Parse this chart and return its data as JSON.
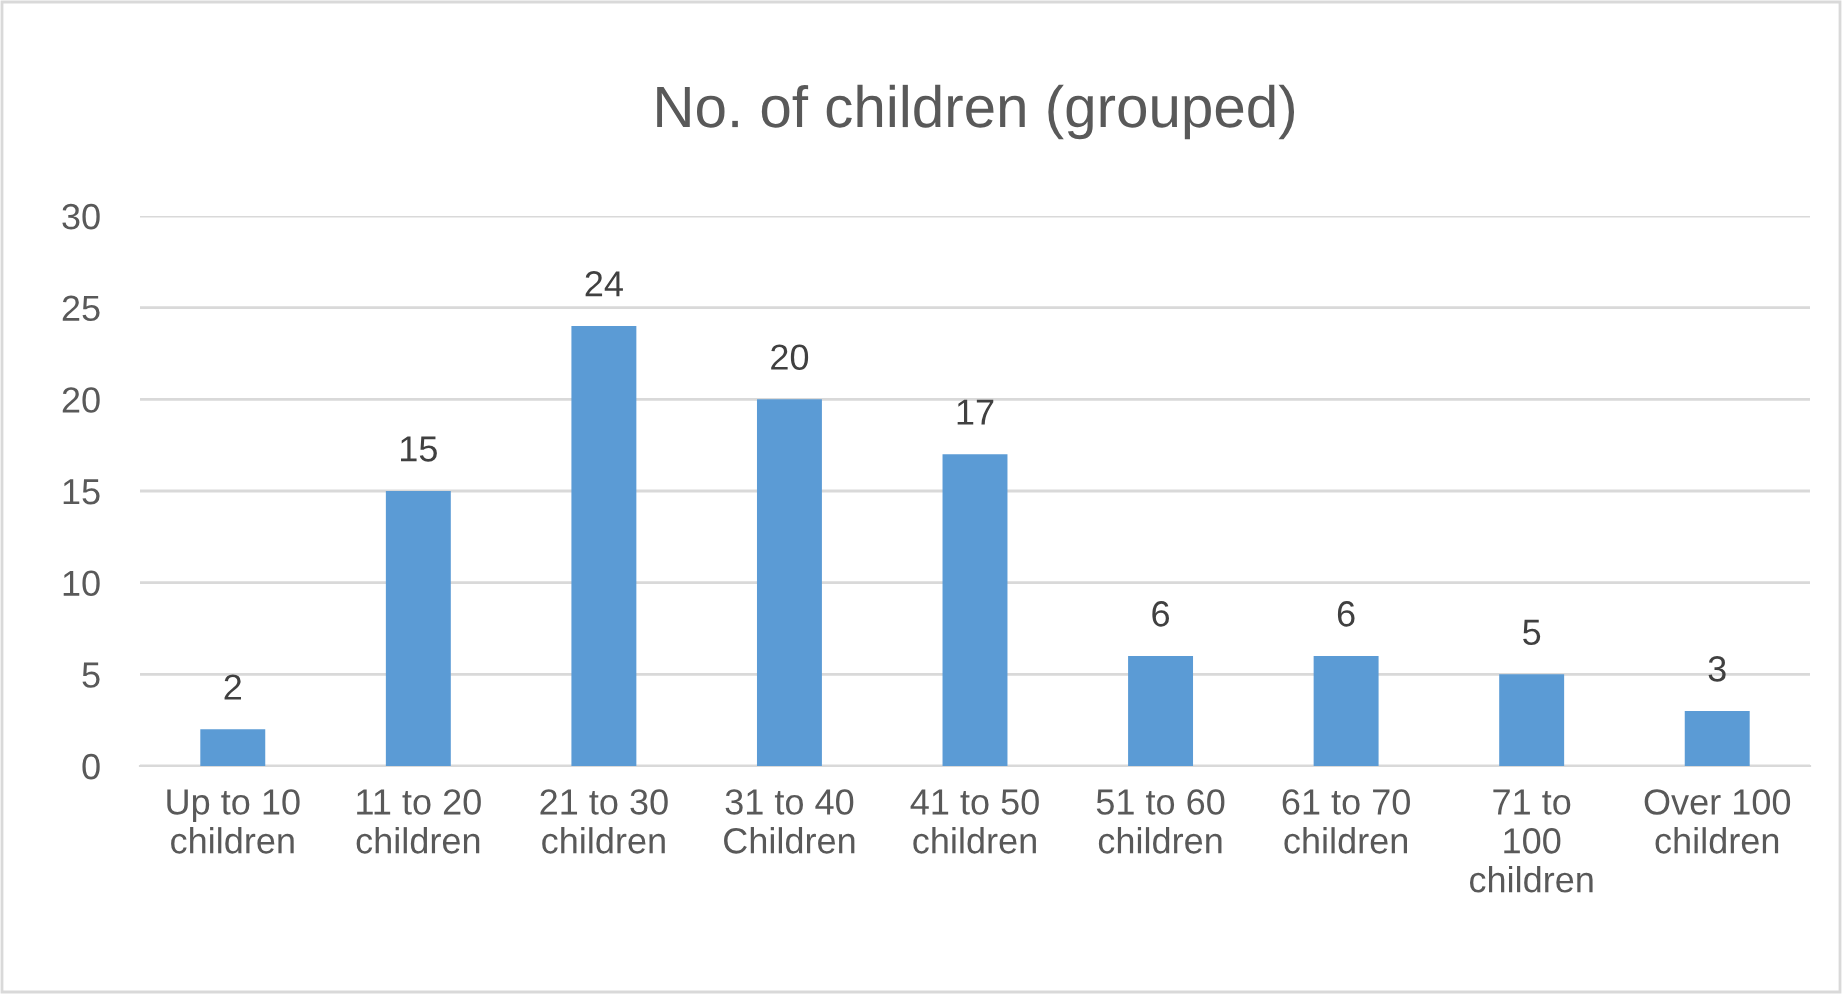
{
  "chart_data": {
    "type": "bar",
    "title": "No. of children (grouped)",
    "categories": [
      "Up to 10\nchildren",
      "11 to 20\nchildren",
      "21 to 30\nchildren",
      "31 to 40\nChildren",
      "41 to 50\nchildren",
      "51 to 60\nchildren",
      "61 to 70\nchildren",
      "71 to\n100\nchildren",
      "Over 100\nchildren"
    ],
    "values": [
      2,
      15,
      24,
      20,
      17,
      6,
      6,
      5,
      3
    ],
    "color": "#5b9bd5",
    "ylim": [
      0,
      30
    ],
    "yticks": [
      0,
      5,
      10,
      15,
      20,
      25,
      30
    ],
    "grid": "y",
    "data_labels": true
  }
}
